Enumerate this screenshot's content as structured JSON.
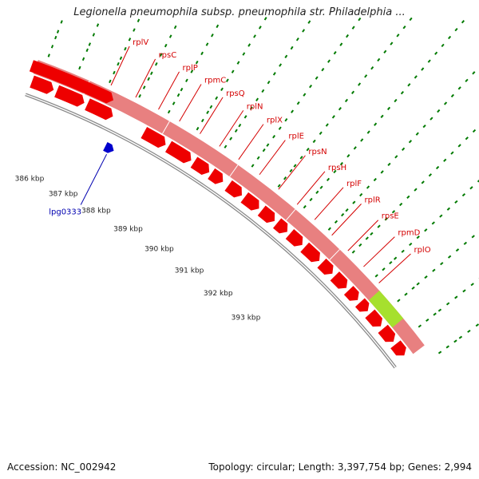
{
  "title": "Legionella pneumophila subsp. pneumophila str. Philadelphia ...",
  "accession": "Accession: NC_002942",
  "summary": "Topology: circular; Length: 3,397,754 bp; Genes: 2,994",
  "colors": {
    "ribosomal_protein": "#ee0000",
    "outer_band": "#e88080",
    "highlight_band": "#a6e02e",
    "other_gene": "#0000cc",
    "backbone": "#8a8a8a",
    "tick": "#007a00",
    "label_gene": "#d40000",
    "label_lpg": "#0000b0"
  },
  "gene_labels": [
    "rplV",
    "rpsC",
    "rplP",
    "rpmC",
    "rpsQ",
    "rplN",
    "rplX",
    "rplE",
    "rpsN",
    "rpsH",
    "rplF",
    "rplR",
    "rpsE",
    "rpmD",
    "rplO"
  ],
  "other_genes": [
    "lpg0333"
  ],
  "kbp_labels": [
    "386 kbp",
    "387 kbp",
    "388 kbp",
    "389 kbp",
    "390 kbp",
    "391 kbp",
    "392 kbp",
    "393 kbp"
  ]
}
